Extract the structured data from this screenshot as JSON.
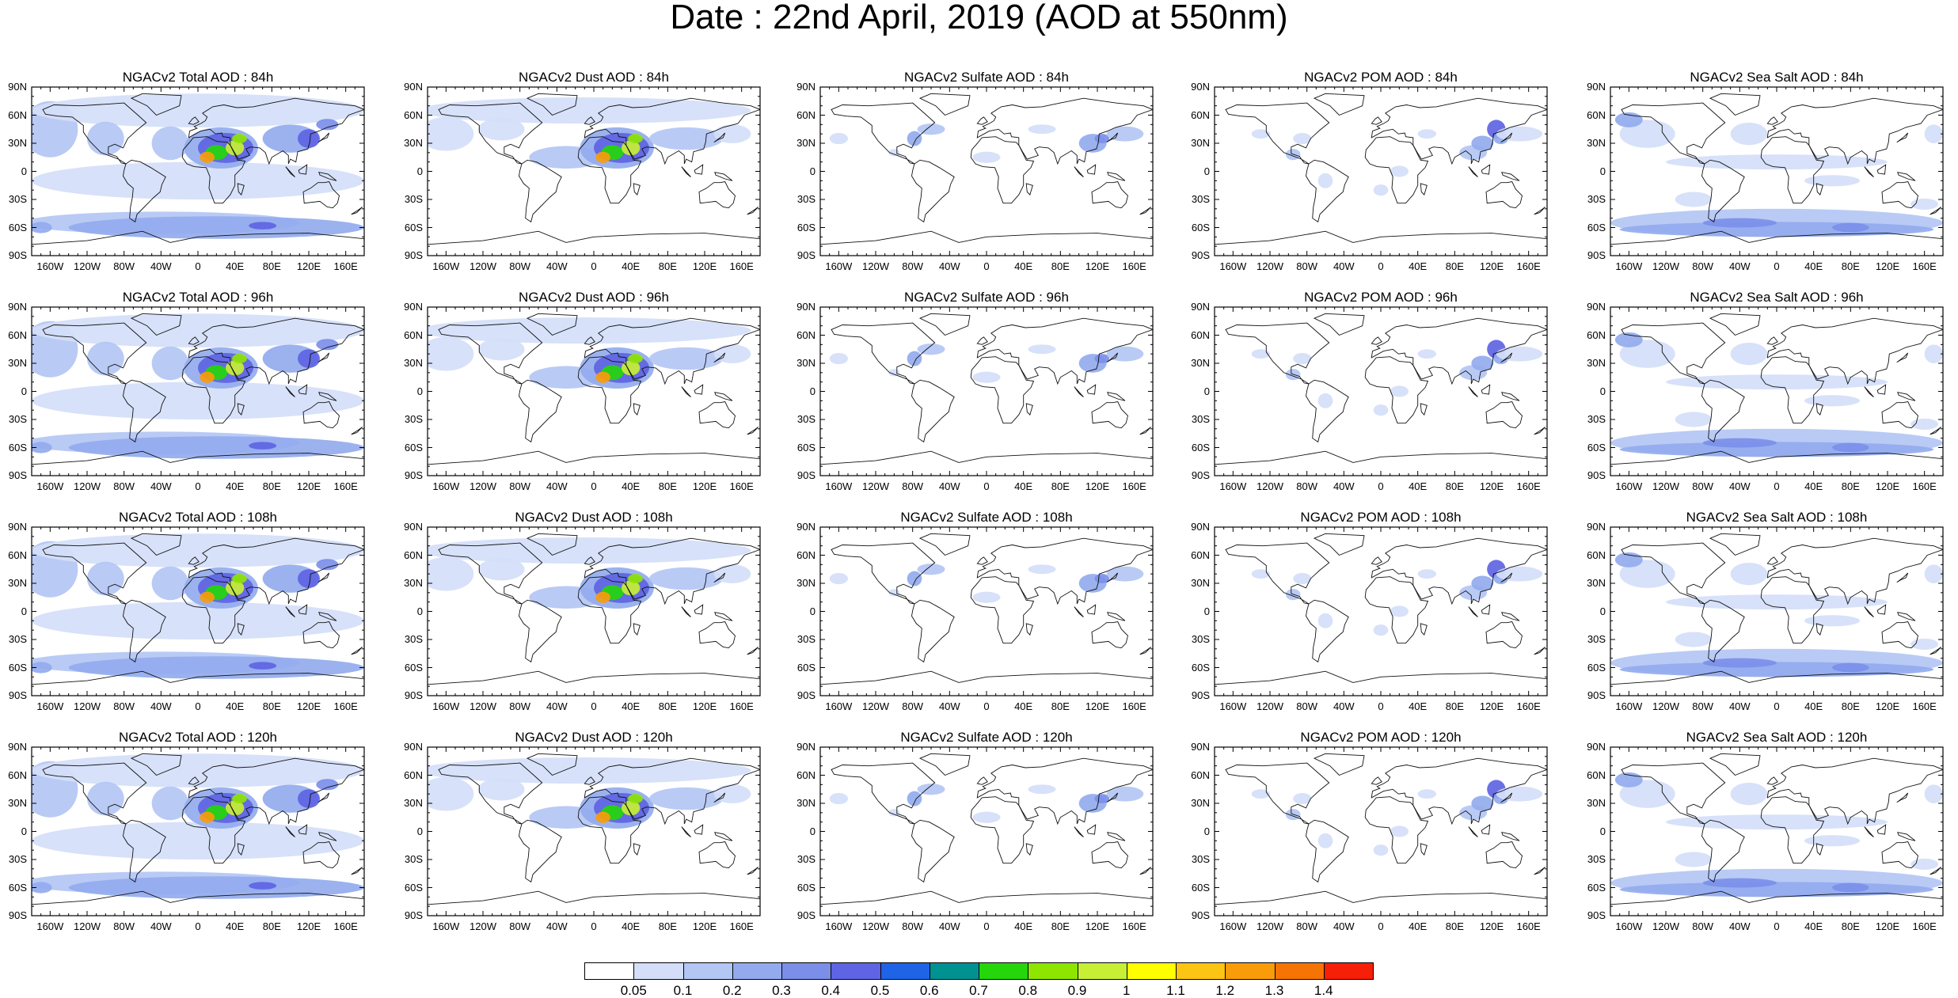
{
  "title": "Date : 22nd April, 2019 (AOD at 550nm)",
  "lat_ticks": [
    "90N",
    "60N",
    "30N",
    "0",
    "30S",
    "60S",
    "90S"
  ],
  "lon_ticks": [
    "160W",
    "120W",
    "80W",
    "40W",
    "0",
    "40E",
    "80E",
    "120E",
    "160E"
  ],
  "panels": [
    {
      "title": "NGACv2 Total AOD : 84h",
      "species": "total"
    },
    {
      "title": "NGACv2 Dust AOD : 84h",
      "species": "dust"
    },
    {
      "title": "NGACv2 Sulfate AOD : 84h",
      "species": "sulfate"
    },
    {
      "title": "NGACv2 POM AOD : 84h",
      "species": "pom"
    },
    {
      "title": "NGACv2 Sea Salt AOD : 84h",
      "species": "seasalt"
    },
    {
      "title": "NGACv2 Total AOD : 96h",
      "species": "total"
    },
    {
      "title": "NGACv2 Dust AOD : 96h",
      "species": "dust"
    },
    {
      "title": "NGACv2 Sulfate AOD : 96h",
      "species": "sulfate"
    },
    {
      "title": "NGACv2 POM AOD : 96h",
      "species": "pom"
    },
    {
      "title": "NGACv2 Sea Salt AOD : 96h",
      "species": "seasalt"
    },
    {
      "title": "NGACv2 Total AOD : 108h",
      "species": "total"
    },
    {
      "title": "NGACv2 Dust AOD : 108h",
      "species": "dust"
    },
    {
      "title": "NGACv2 Sulfate AOD : 108h",
      "species": "sulfate"
    },
    {
      "title": "NGACv2 POM AOD : 108h",
      "species": "pom"
    },
    {
      "title": "NGACv2 Sea Salt AOD : 108h",
      "species": "seasalt"
    },
    {
      "title": "NGACv2 Total AOD : 120h",
      "species": "total"
    },
    {
      "title": "NGACv2 Dust AOD : 120h",
      "species": "dust"
    },
    {
      "title": "NGACv2 Sulfate AOD : 120h",
      "species": "sulfate"
    },
    {
      "title": "NGACv2 POM AOD : 120h",
      "species": "pom"
    },
    {
      "title": "NGACv2 Sea Salt  AOD : 120h",
      "species": "seasalt"
    }
  ],
  "colorbar": {
    "labels": [
      "0.05",
      "0.1",
      "0.2",
      "0.3",
      "0.4",
      "0.5",
      "0.6",
      "0.7",
      "0.8",
      "0.9",
      "1",
      "1.1",
      "1.2",
      "1.3",
      "1.4"
    ],
    "colors": [
      "#ffffff",
      "#d4def9",
      "#b3c6f4",
      "#93abee",
      "#7b8fe9",
      "#5e64e3",
      "#1f63e6",
      "#009191",
      "#24d60a",
      "#8ee600",
      "#c7ef36",
      "#ffff00",
      "#fcc413",
      "#f99c09",
      "#f67404",
      "#f61f07"
    ]
  }
}
